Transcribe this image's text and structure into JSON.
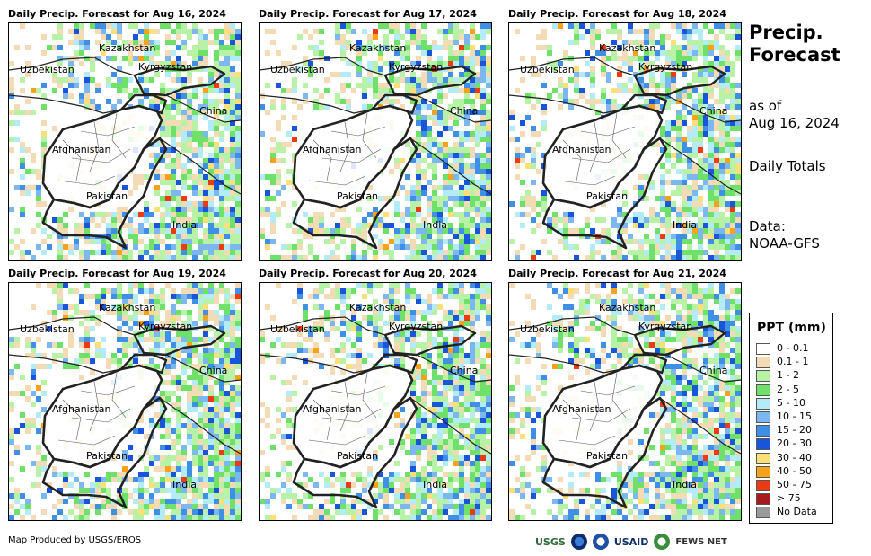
{
  "side": {
    "title_line1": "Precip.",
    "title_line2": "Forecast",
    "asof_line1": "as of",
    "asof_line2": "Aug 16, 2024",
    "totals": "Daily Totals",
    "data_line1": "Data:",
    "data_line2": "NOAA-GFS"
  },
  "labels": {
    "kazakhstan": "Kazakhstan",
    "uzbekistan": "Uzbekistan",
    "kyrgyzstan": "Kyrgyzstan",
    "china": "China",
    "afghanistan": "Afghanistan",
    "pakistan": "Pakistan",
    "india": "India"
  },
  "panels": [
    {
      "title": "Daily Precip. Forecast for Aug 16, 2024"
    },
    {
      "title": "Daily Precip. Forecast for Aug 17, 2024"
    },
    {
      "title": "Daily Precip. Forecast for Aug 18, 2024"
    },
    {
      "title": "Daily Precip. Forecast for Aug 19, 2024"
    },
    {
      "title": "Daily Precip. Forecast for Aug 20, 2024"
    },
    {
      "title": "Daily Precip. Forecast for Aug 21, 2024"
    }
  ],
  "legend": {
    "title": "PPT (mm)",
    "items": [
      {
        "label": "0 - 0.1",
        "color": "#ffffff"
      },
      {
        "label": "0.1 - 1",
        "color": "#f3dcb5"
      },
      {
        "label": "1 - 2",
        "color": "#b8f2a6"
      },
      {
        "label": "2 - 5",
        "color": "#6fe06a"
      },
      {
        "label": "5 - 10",
        "color": "#b3ecf7"
      },
      {
        "label": "10 - 15",
        "color": "#7cb7ef"
      },
      {
        "label": "15 - 20",
        "color": "#3f8fe6"
      },
      {
        "label": "20 - 30",
        "color": "#1955d9"
      },
      {
        "label": "30 - 40",
        "color": "#fbe07a"
      },
      {
        "label": "40 - 50",
        "color": "#f6a21d"
      },
      {
        "label": "50 - 75",
        "color": "#ec3a15"
      },
      {
        "label": "> 75",
        "color": "#a61b1b"
      },
      {
        "label": "No Data",
        "color": "#9a9a9a"
      }
    ]
  },
  "credit": "Map Produced by USGS/EROS",
  "logos": {
    "usgs": "USGS",
    "usaid": "USAID",
    "fews": "FEWS NET"
  }
}
